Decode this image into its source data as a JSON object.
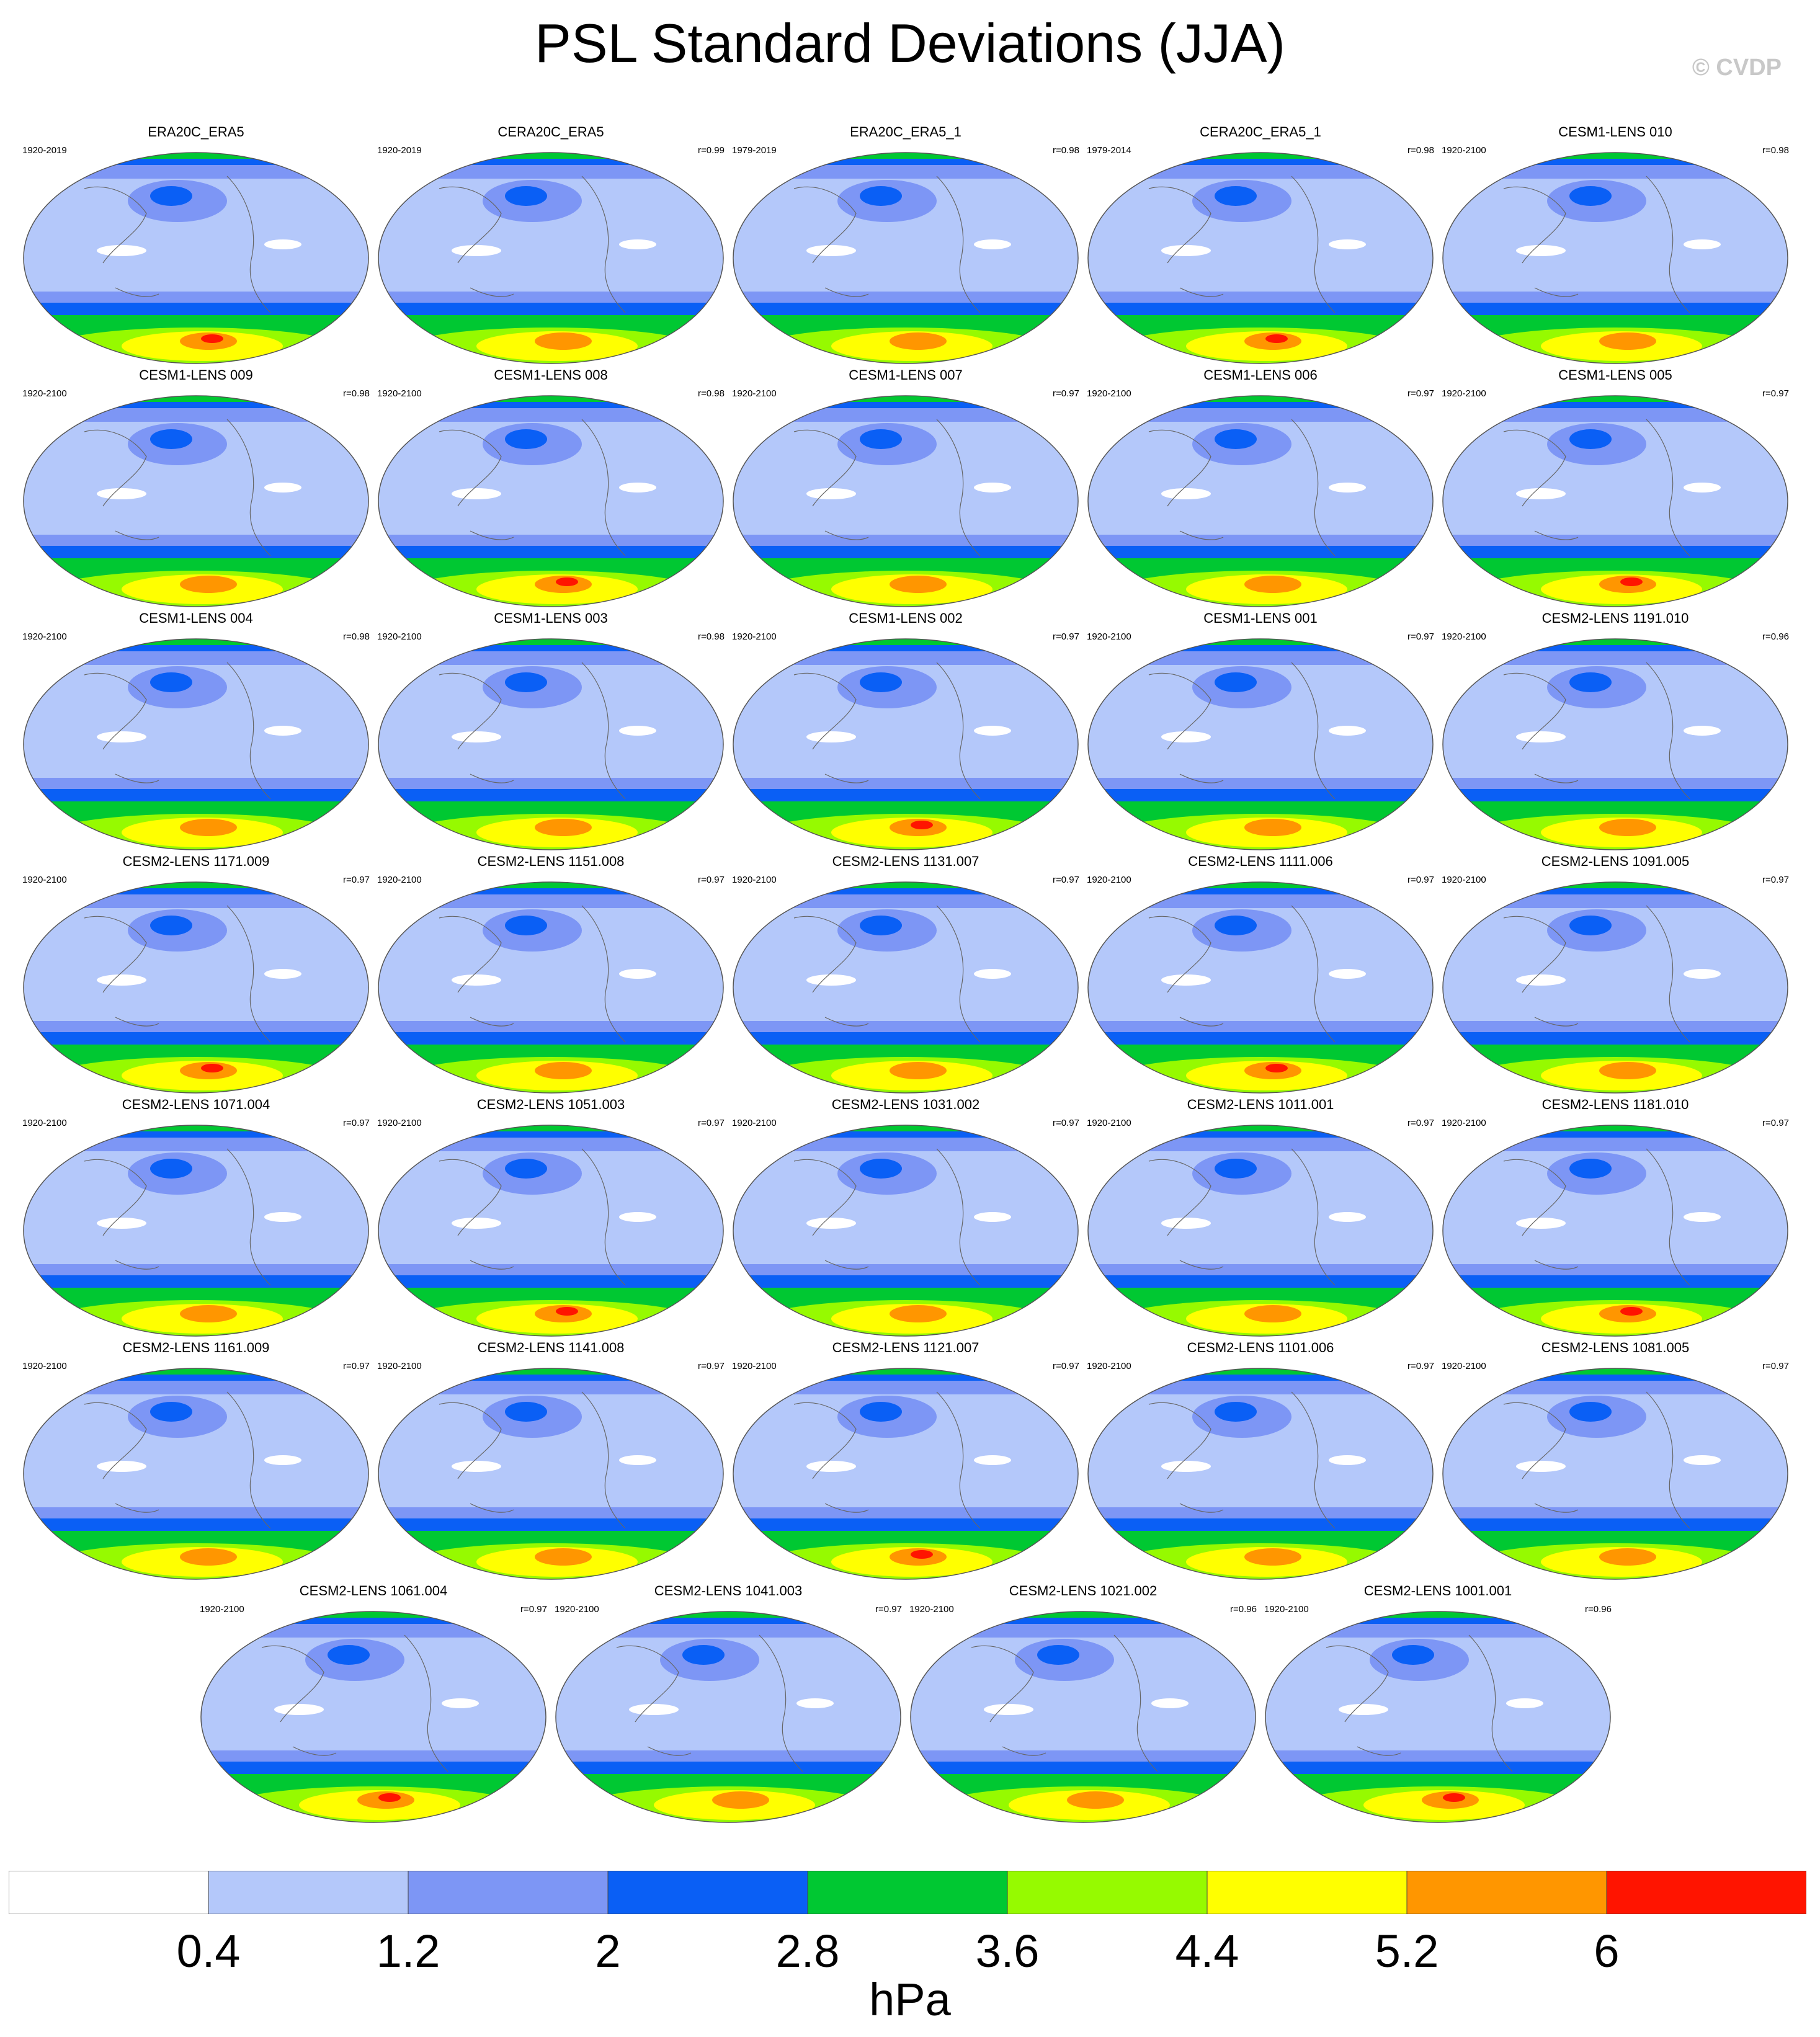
{
  "title": "PSL Standard Deviations (JJA)",
  "watermark": "© CVDP",
  "chart_data": {
    "type": "heatmap",
    "title": "PSL Standard Deviations (JJA)",
    "projection": "global-robinson-pacific-centered",
    "units": "hPa",
    "panels": [
      {
        "name": "ERA20C_ERA5",
        "years": "1920-2019",
        "corr": ""
      },
      {
        "name": "CERA20C_ERA5",
        "years": "1920-2019",
        "corr": "r=0.99"
      },
      {
        "name": "ERA20C_ERA5_1",
        "years": "1979-2019",
        "corr": "r=0.98"
      },
      {
        "name": "CERA20C_ERA5_1",
        "years": "1979-2014",
        "corr": "r=0.98"
      },
      {
        "name": "CESM1-LENS 010",
        "years": "1920-2100",
        "corr": "r=0.98"
      },
      {
        "name": "CESM1-LENS 009",
        "years": "1920-2100",
        "corr": "r=0.98"
      },
      {
        "name": "CESM1-LENS 008",
        "years": "1920-2100",
        "corr": "r=0.98"
      },
      {
        "name": "CESM1-LENS 007",
        "years": "1920-2100",
        "corr": "r=0.97"
      },
      {
        "name": "CESM1-LENS 006",
        "years": "1920-2100",
        "corr": "r=0.97"
      },
      {
        "name": "CESM1-LENS 005",
        "years": "1920-2100",
        "corr": "r=0.97"
      },
      {
        "name": "CESM1-LENS 004",
        "years": "1920-2100",
        "corr": "r=0.98"
      },
      {
        "name": "CESM1-LENS 003",
        "years": "1920-2100",
        "corr": "r=0.98"
      },
      {
        "name": "CESM1-LENS 002",
        "years": "1920-2100",
        "corr": "r=0.97"
      },
      {
        "name": "CESM1-LENS 001",
        "years": "1920-2100",
        "corr": "r=0.97"
      },
      {
        "name": "CESM2-LENS 1191.010",
        "years": "1920-2100",
        "corr": "r=0.96"
      },
      {
        "name": "CESM2-LENS 1171.009",
        "years": "1920-2100",
        "corr": "r=0.97"
      },
      {
        "name": "CESM2-LENS 1151.008",
        "years": "1920-2100",
        "corr": "r=0.97"
      },
      {
        "name": "CESM2-LENS 1131.007",
        "years": "1920-2100",
        "corr": "r=0.97"
      },
      {
        "name": "CESM2-LENS 1111.006",
        "years": "1920-2100",
        "corr": "r=0.97"
      },
      {
        "name": "CESM2-LENS 1091.005",
        "years": "1920-2100",
        "corr": "r=0.97"
      },
      {
        "name": "CESM2-LENS 1071.004",
        "years": "1920-2100",
        "corr": "r=0.97"
      },
      {
        "name": "CESM2-LENS 1051.003",
        "years": "1920-2100",
        "corr": "r=0.97"
      },
      {
        "name": "CESM2-LENS 1031.002",
        "years": "1920-2100",
        "corr": "r=0.97"
      },
      {
        "name": "CESM2-LENS 1011.001",
        "years": "1920-2100",
        "corr": "r=0.97"
      },
      {
        "name": "CESM2-LENS 1181.010",
        "years": "1920-2100",
        "corr": "r=0.97"
      },
      {
        "name": "CESM2-LENS 1161.009",
        "years": "1920-2100",
        "corr": "r=0.97"
      },
      {
        "name": "CESM2-LENS 1141.008",
        "years": "1920-2100",
        "corr": "r=0.97"
      },
      {
        "name": "CESM2-LENS 1121.007",
        "years": "1920-2100",
        "corr": "r=0.97"
      },
      {
        "name": "CESM2-LENS 1101.006",
        "years": "1920-2100",
        "corr": "r=0.97"
      },
      {
        "name": "CESM2-LENS 1081.005",
        "years": "1920-2100",
        "corr": "r=0.97"
      },
      {
        "name": "CESM2-LENS 1061.004",
        "years": "1920-2100",
        "corr": "r=0.97"
      },
      {
        "name": "CESM2-LENS 1041.003",
        "years": "1920-2100",
        "corr": "r=0.97"
      },
      {
        "name": "CESM2-LENS 1021.002",
        "years": "1920-2100",
        "corr": "r=0.96"
      },
      {
        "name": "CESM2-LENS 1001.001",
        "years": "1920-2100",
        "corr": "r=0.96"
      }
    ],
    "colorbar": {
      "levels": [
        0.4,
        1.2,
        2,
        2.8,
        3.6,
        4.4,
        5.2,
        6
      ],
      "labels": [
        "0.4",
        "1.2",
        "2",
        "2.8",
        "3.6",
        "4.4",
        "5.2",
        "6"
      ],
      "colors": [
        "#ffffff",
        "#b4c8fa",
        "#7d96f5",
        "#0a5ff5",
        "#00c832",
        "#96fa00",
        "#ffff00",
        "#ff9600",
        "#ff1400"
      ],
      "units": "hPa"
    }
  }
}
